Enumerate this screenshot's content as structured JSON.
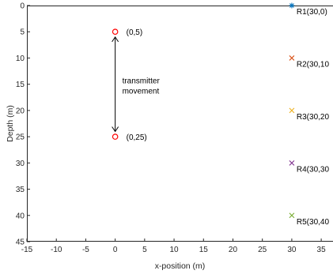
{
  "chart_data": {
    "type": "scatter",
    "title": "",
    "xlabel": "x-position (m)",
    "ylabel": "Depth (m)",
    "xlim": [
      -15,
      37
    ],
    "ylim": [
      0,
      45
    ],
    "y_reversed": true,
    "grid": false,
    "xticks": [
      -15,
      -10,
      -5,
      0,
      5,
      10,
      15,
      20,
      25,
      30,
      35
    ],
    "yticks": [
      0,
      5,
      10,
      15,
      20,
      25,
      30,
      35,
      40,
      45
    ],
    "series": [
      {
        "marker": "circle",
        "color": "#ff0000",
        "points": [
          {
            "x": 0,
            "y": 5,
            "label": "(0,5)"
          },
          {
            "x": 0,
            "y": 25,
            "label": "(0,25)"
          }
        ]
      },
      {
        "marker": "star",
        "color": "#0072bd",
        "points": [
          {
            "x": 30,
            "y": 0,
            "label": "R1(30,0)"
          }
        ]
      },
      {
        "marker": "x",
        "color": "#d95319",
        "points": [
          {
            "x": 30,
            "y": 10,
            "label": "R2(30,10"
          }
        ]
      },
      {
        "marker": "x",
        "color": "#edb120",
        "points": [
          {
            "x": 30,
            "y": 20,
            "label": "R3(30,20"
          }
        ]
      },
      {
        "marker": "x",
        "color": "#7e2f8e",
        "points": [
          {
            "x": 30,
            "y": 30,
            "label": "R4(30,30"
          }
        ]
      },
      {
        "marker": "x",
        "color": "#77ac30",
        "points": [
          {
            "x": 30,
            "y": 40,
            "label": "R5(30,40"
          }
        ]
      }
    ],
    "annotations": [
      {
        "text_lines": [
          "transmitter",
          "movement"
        ],
        "x": 1.2,
        "y": 15
      },
      {
        "type": "double-arrow",
        "x": 0,
        "y_start": 6,
        "y_end": 24
      }
    ]
  }
}
